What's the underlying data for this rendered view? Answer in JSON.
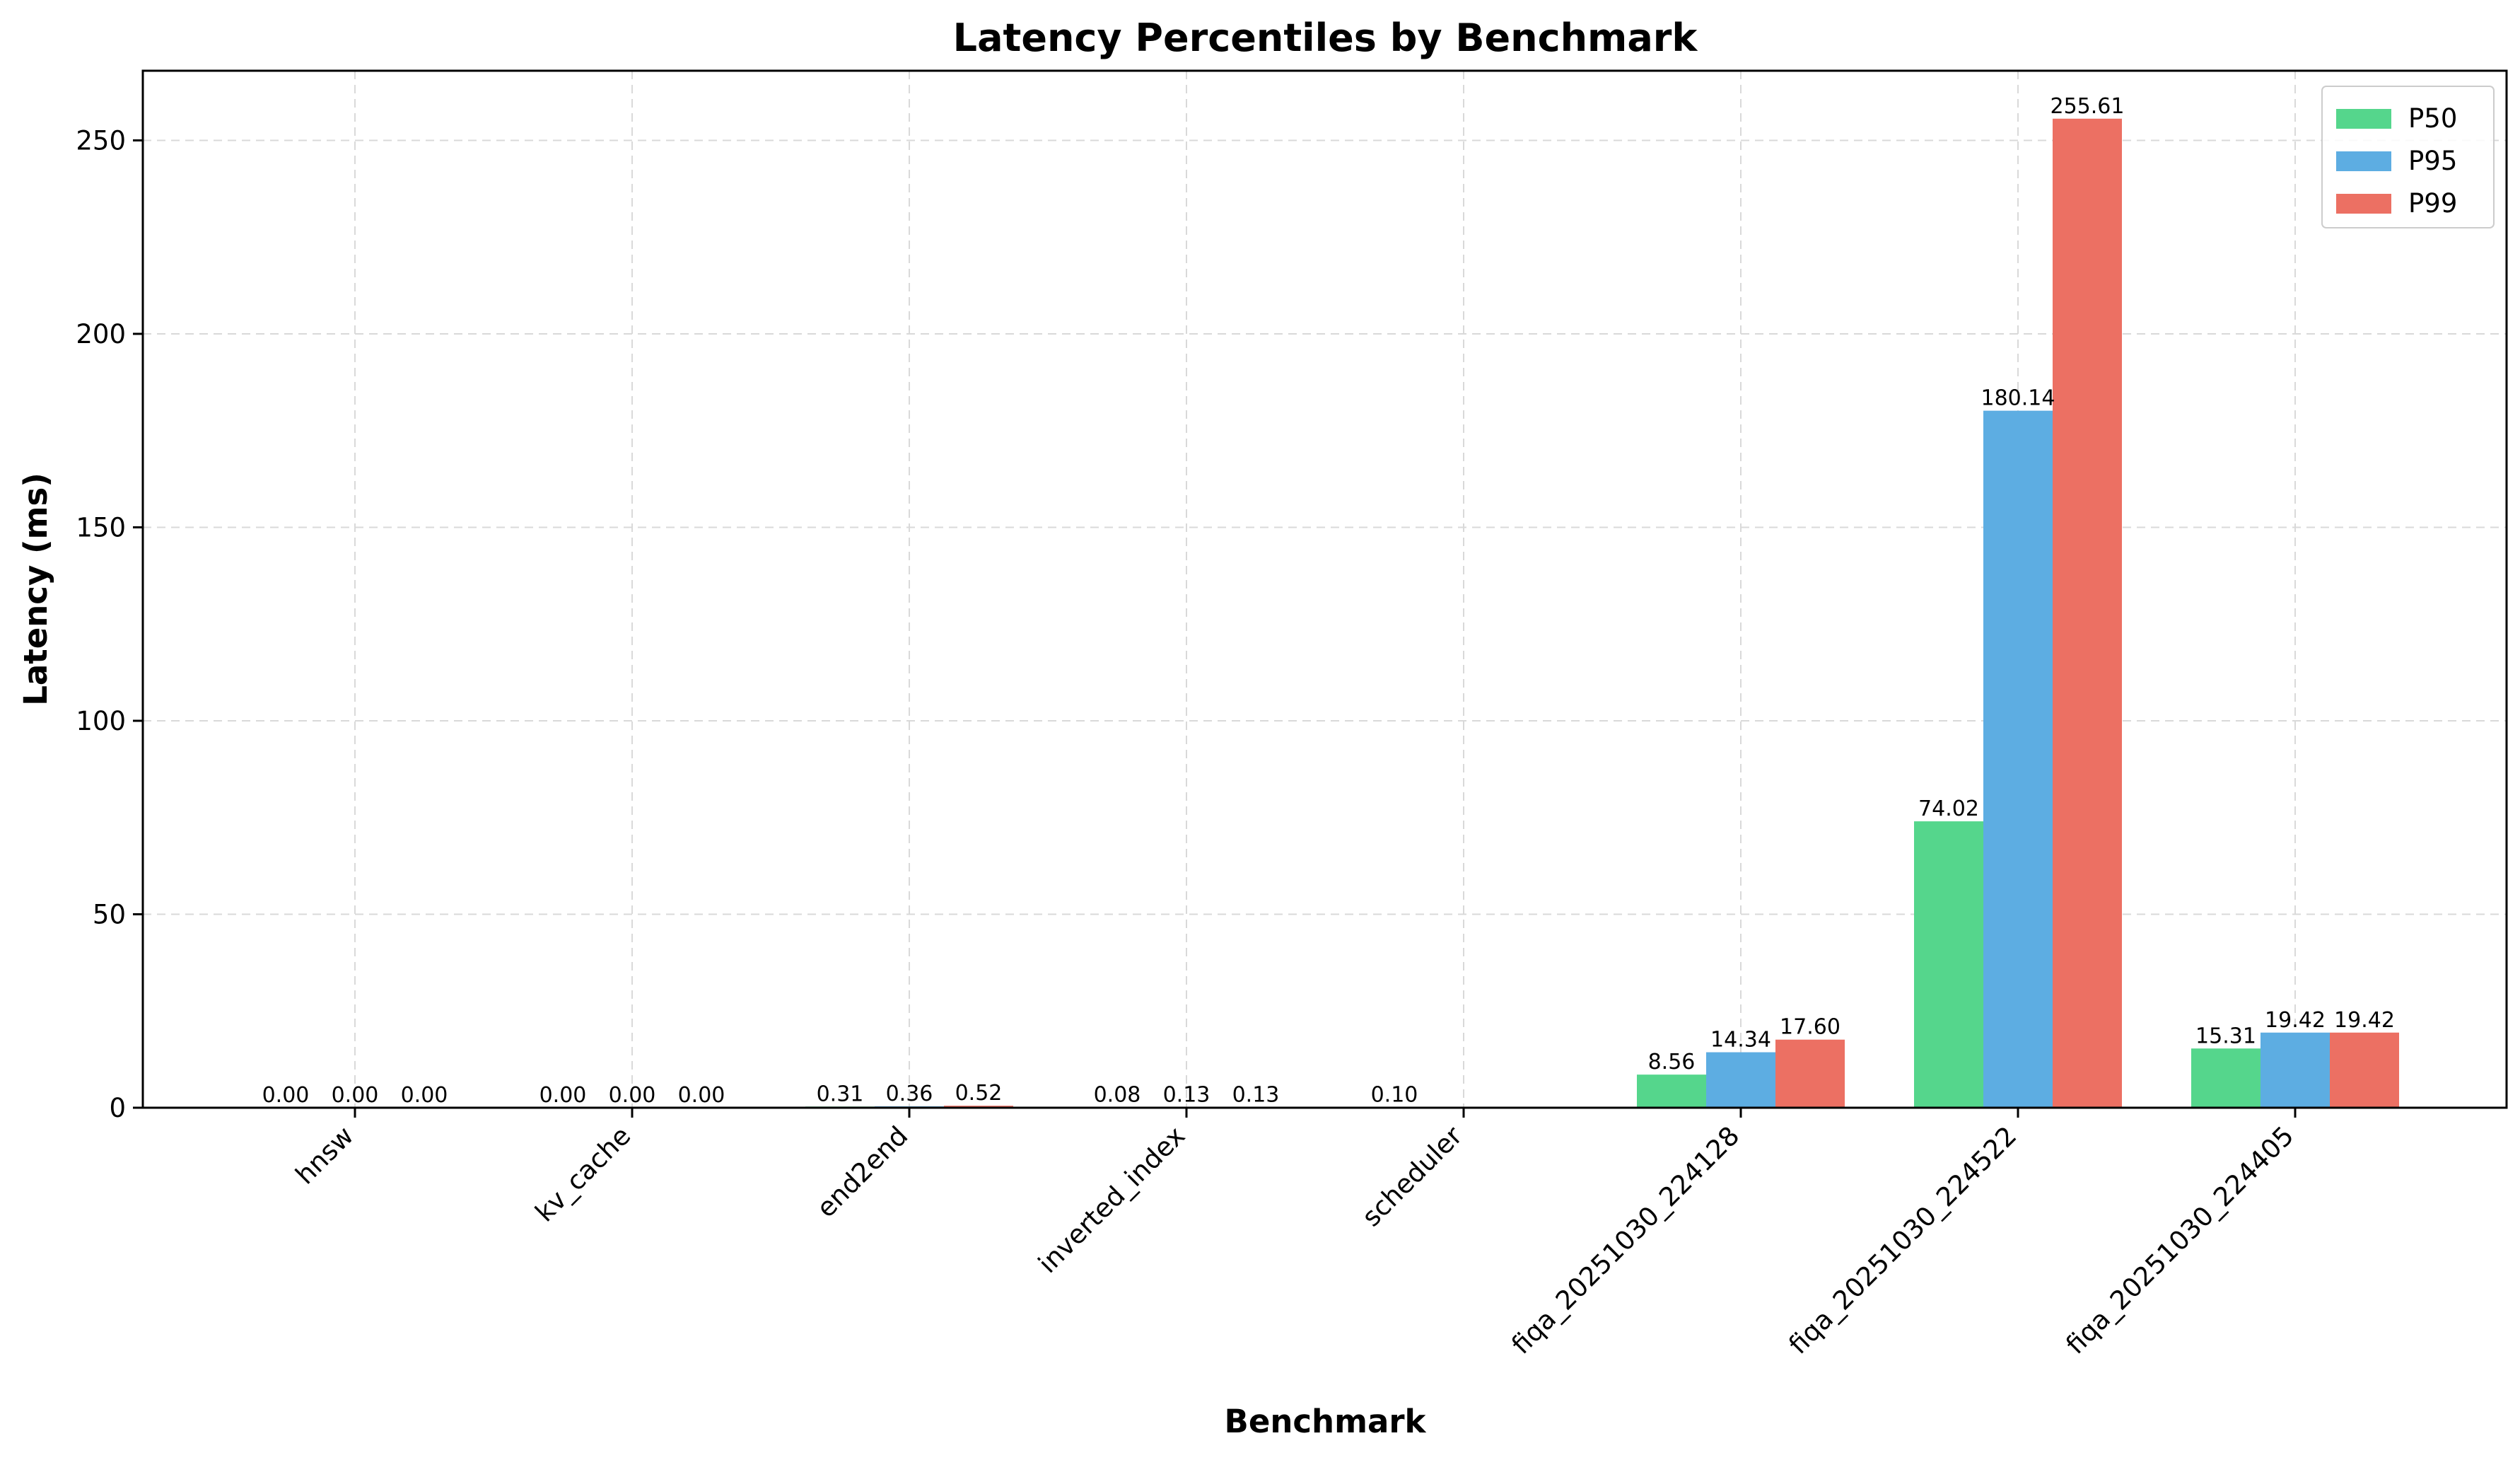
{
  "chart_data": {
    "type": "bar",
    "title": "Latency Percentiles by Benchmark",
    "xlabel": "Benchmark",
    "ylabel": "Latency (ms)",
    "ylim": [
      0,
      268
    ],
    "yticks": [
      0,
      50,
      100,
      150,
      200,
      250
    ],
    "grid": true,
    "legend_position": "top-right",
    "categories": [
      "hnsw",
      "kv_cache",
      "end2end",
      "inverted_index",
      "scheduler",
      "fiqa_20251030_224128",
      "fiqa_20251030_224522",
      "fiqa_20251030_224405"
    ],
    "series": [
      {
        "name": "P50",
        "color": "#55d68c",
        "values": [
          0.0,
          0.0,
          0.31,
          0.08,
          0.1,
          8.56,
          74.02,
          15.31
        ],
        "labels": [
          "0.00",
          "0.00",
          "0.31",
          "0.08",
          "0.10",
          "8.56",
          "74.02",
          "15.31"
        ]
      },
      {
        "name": "P95",
        "color": "#5dade2",
        "values": [
          0.0,
          0.0,
          0.36,
          0.13,
          null,
          14.34,
          180.14,
          19.42
        ],
        "labels": [
          "0.00",
          "0.00",
          "0.36",
          "0.13",
          "",
          "14.34",
          "180.14",
          "19.42"
        ]
      },
      {
        "name": "P99",
        "color": "#ec7063",
        "values": [
          0.0,
          0.0,
          0.52,
          0.13,
          null,
          17.6,
          255.61,
          19.42
        ],
        "labels": [
          "0.00",
          "0.00",
          "0.52",
          "0.13",
          "",
          "17.60",
          "255.61",
          "19.42"
        ]
      }
    ]
  }
}
